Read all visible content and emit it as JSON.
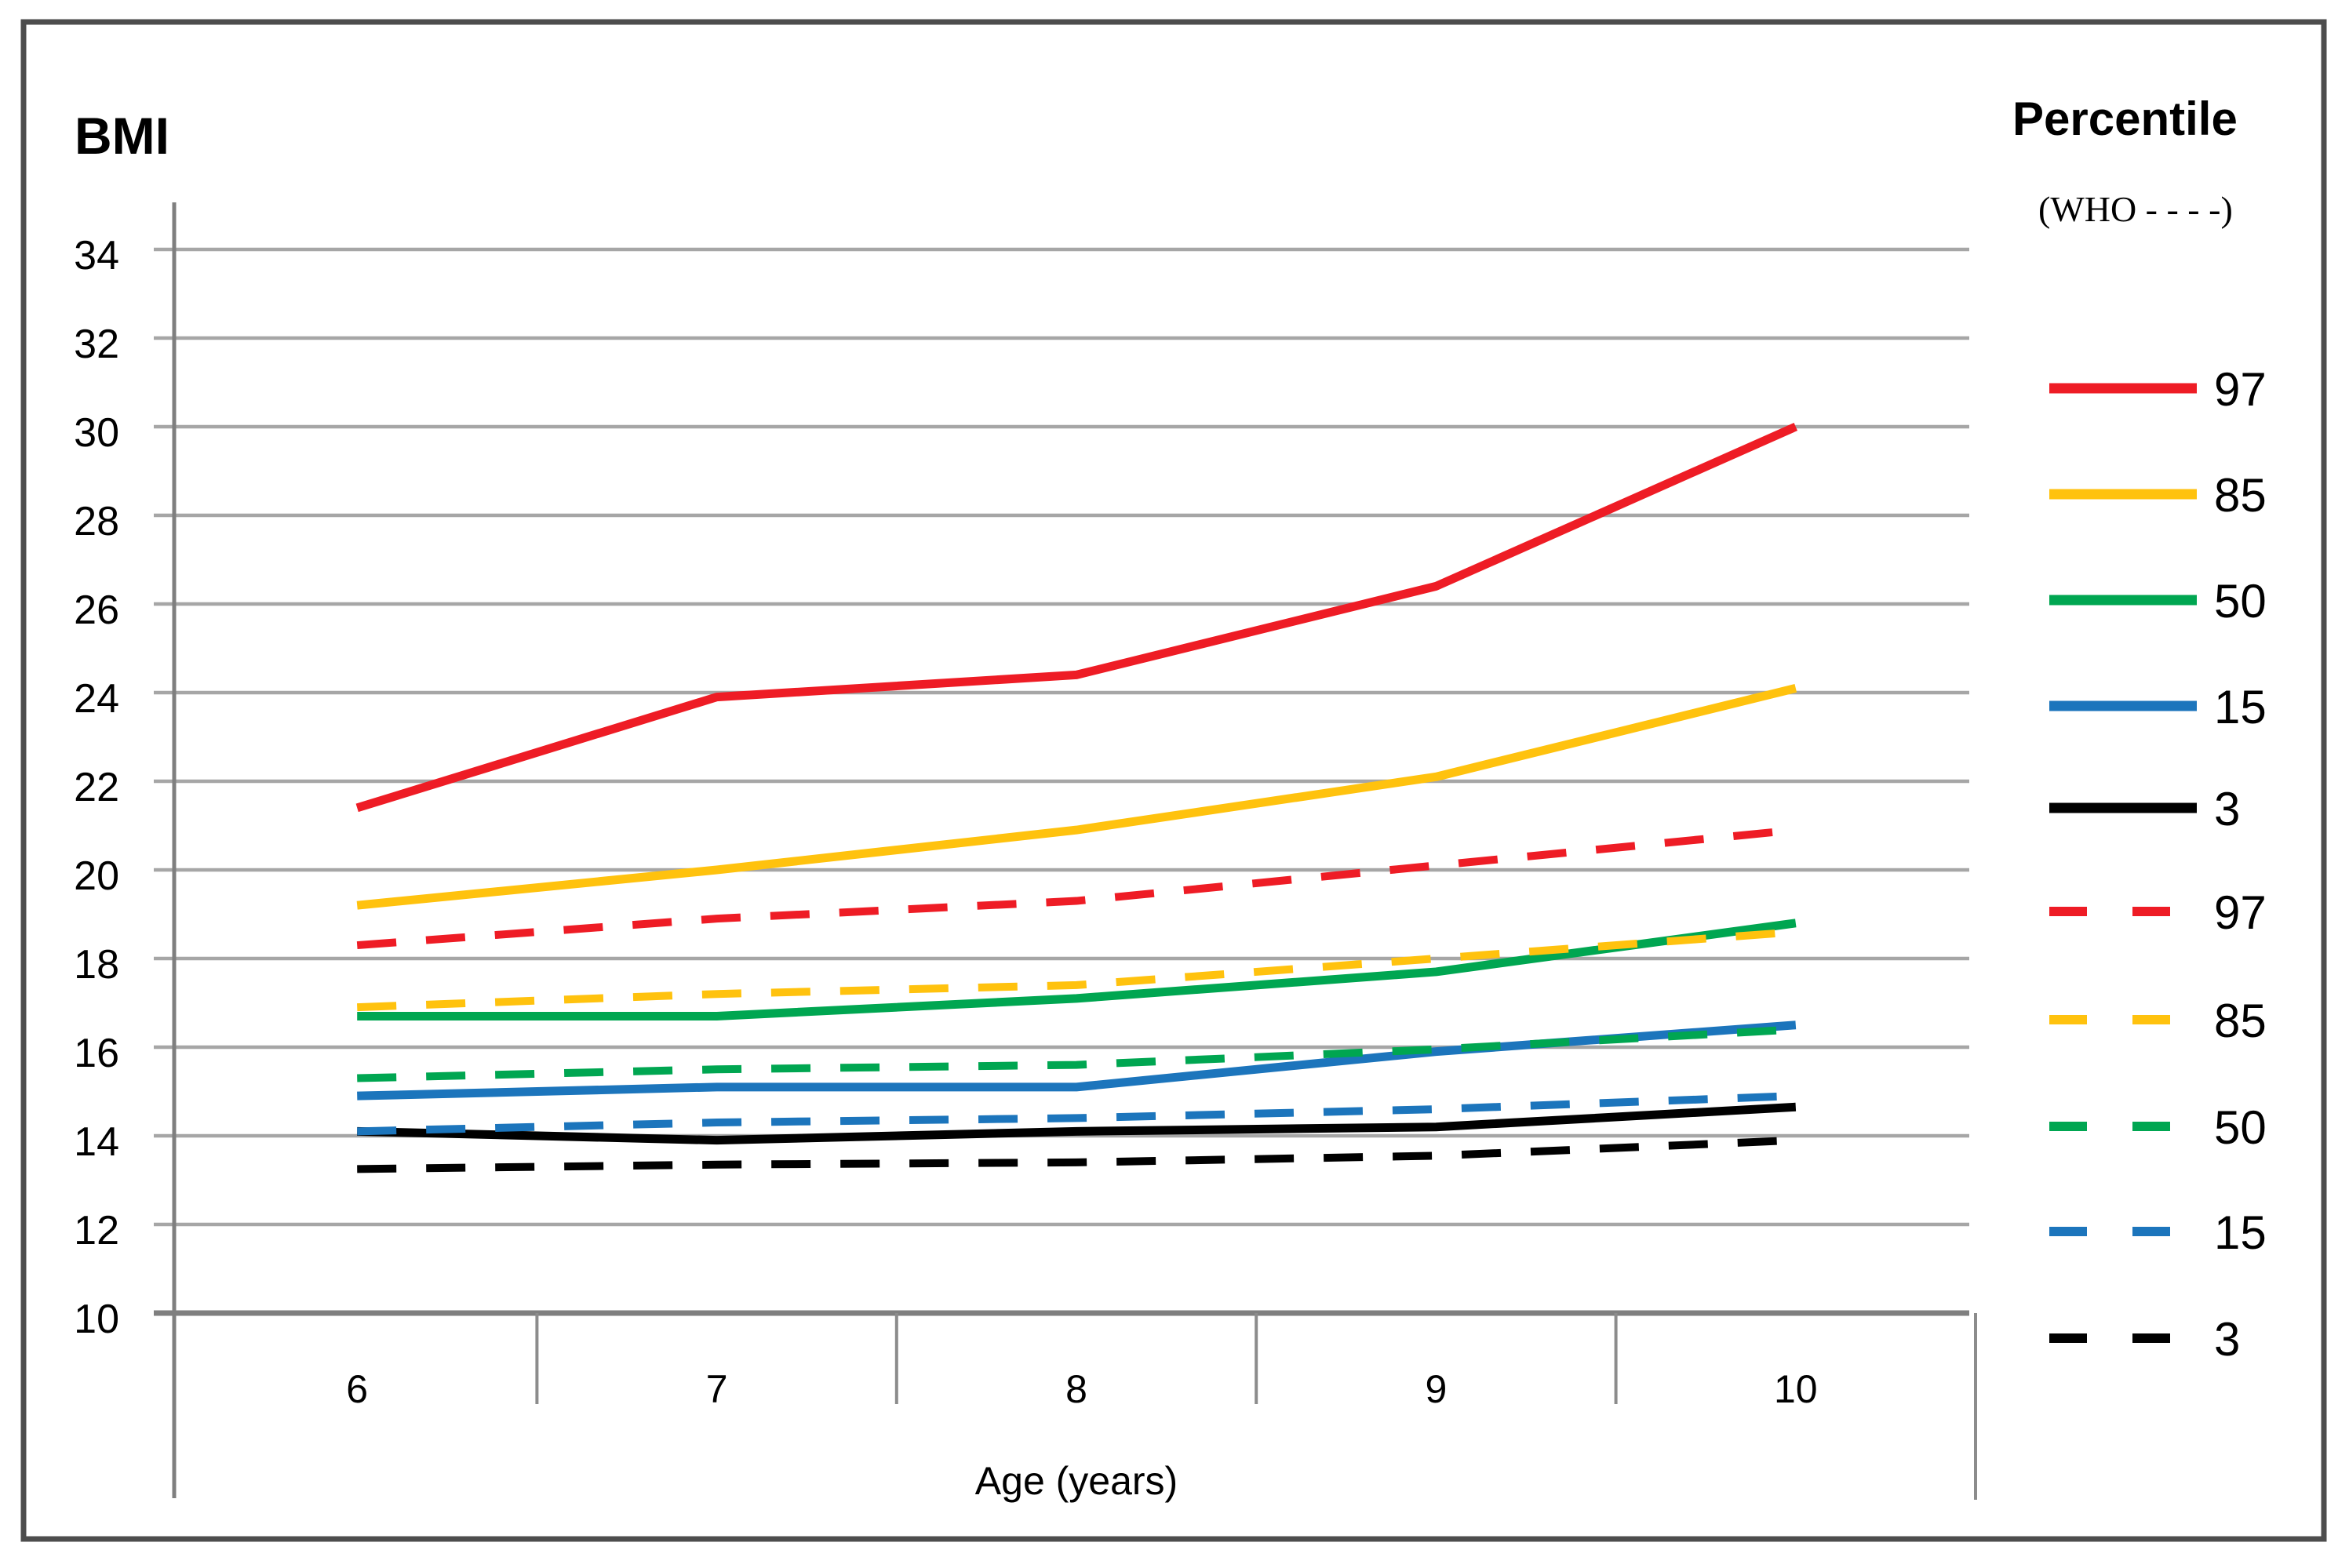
{
  "figure": {
    "y_axis_title": "BMI",
    "x_axis_title": "Age (years)"
  },
  "legend": {
    "title": "Percentile",
    "subtitle": "(WHO - - - -)",
    "entries": [
      {
        "label": "97",
        "color": "#ee1c25",
        "style": "solid"
      },
      {
        "label": "85",
        "color": "#ffc20e",
        "style": "solid"
      },
      {
        "label": "50",
        "color": "#00a651",
        "style": "solid"
      },
      {
        "label": "15",
        "color": "#1c75bc",
        "style": "solid"
      },
      {
        "label": "3",
        "color": "#000000",
        "style": "solid"
      },
      {
        "label": "97",
        "color": "#ee1c25",
        "style": "dashed"
      },
      {
        "label": "85",
        "color": "#ffc20e",
        "style": "dashed"
      },
      {
        "label": "50",
        "color": "#00a651",
        "style": "dashed"
      },
      {
        "label": "15",
        "color": "#1c75bc",
        "style": "dashed"
      },
      {
        "label": "3",
        "color": "#000000",
        "style": "dashed"
      }
    ]
  },
  "chart_data": {
    "type": "line",
    "title": "",
    "xlabel": "Age (years)",
    "ylabel": "BMI",
    "categories": [
      "6",
      "7",
      "8",
      "9",
      "10"
    ],
    "yticks": [
      34,
      32,
      30,
      28,
      26,
      24,
      22,
      20,
      18,
      16,
      14,
      12,
      10
    ],
    "ylim": [
      10,
      34
    ],
    "grid": "horizontal",
    "legend_position": "right",
    "colors": {
      "p97": "#ee1c25",
      "p85": "#ffc20e",
      "p50": "#00a651",
      "p15": "#1c75bc",
      "p3": "#000000",
      "gridline": "#a6a6a6",
      "axis": "#7f7f7f",
      "border": "#4d4d4d"
    },
    "series": [
      {
        "name": "97",
        "group": "study",
        "style": "solid",
        "color": "#ee1c25",
        "values": [
          21.4,
          23.9,
          24.4,
          26.4,
          30.0
        ]
      },
      {
        "name": "85",
        "group": "study",
        "style": "solid",
        "color": "#ffc20e",
        "values": [
          19.2,
          20.0,
          20.9,
          22.1,
          24.1
        ]
      },
      {
        "name": "50",
        "group": "study",
        "style": "solid",
        "color": "#00a651",
        "values": [
          16.7,
          16.7,
          17.1,
          17.7,
          18.8
        ]
      },
      {
        "name": "15",
        "group": "study",
        "style": "solid",
        "color": "#1c75bc",
        "values": [
          14.9,
          15.1,
          15.1,
          15.9,
          16.5
        ]
      },
      {
        "name": "3",
        "group": "study",
        "style": "solid",
        "color": "#000000",
        "values": [
          14.1,
          13.9,
          14.1,
          14.2,
          14.65
        ]
      },
      {
        "name": "97",
        "group": "WHO",
        "style": "dashed",
        "color": "#ee1c25",
        "values": [
          18.3,
          18.9,
          19.3,
          20.1,
          20.9
        ]
      },
      {
        "name": "85",
        "group": "WHO",
        "style": "dashed",
        "color": "#ffc20e",
        "values": [
          16.9,
          17.2,
          17.4,
          18.0,
          18.6
        ]
      },
      {
        "name": "50",
        "group": "WHO",
        "style": "dashed",
        "color": "#00a651",
        "values": [
          15.3,
          15.5,
          15.6,
          15.95,
          16.4
        ]
      },
      {
        "name": "15",
        "group": "WHO",
        "style": "dashed",
        "color": "#1c75bc",
        "values": [
          14.1,
          14.3,
          14.4,
          14.6,
          14.9
        ]
      },
      {
        "name": "3",
        "group": "WHO",
        "style": "dashed",
        "color": "#000000",
        "values": [
          13.25,
          13.35,
          13.4,
          13.55,
          13.9
        ]
      }
    ]
  }
}
